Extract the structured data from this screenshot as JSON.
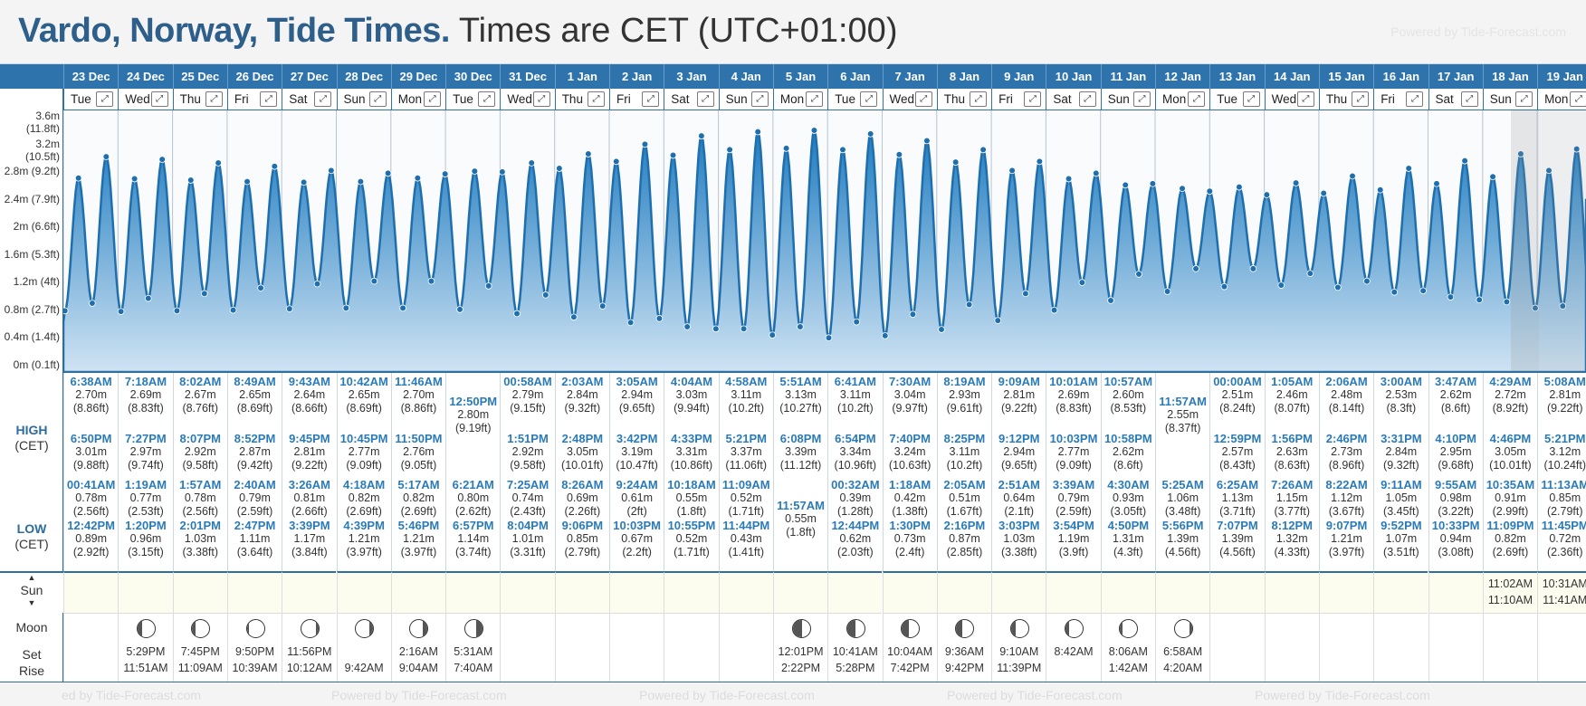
{
  "header": {
    "title_bold": "Vardo, Norway, Tide Times.",
    "title_rest": "Times are CET (UTC+01:00)",
    "powered": "Powered by Tide-Forecast.com"
  },
  "labels": {
    "high": "HIGH",
    "low": "LOW",
    "cet": "(CET)",
    "sun": "Sun",
    "moon": "Moon",
    "set": "Set",
    "rise": "Rise",
    "up_arrow": "▲",
    "down_arrow": "▼"
  },
  "y_axis": [
    "3.2m (10.5ft)",
    "2.8m (9.2ft)",
    "2.4m (7.9ft)",
    "2m (6.6ft)",
    "1.6m (5.3ft)",
    "1.2m (4ft)",
    "0.8m (2.7ft)",
    "0.4m (1.4ft)",
    "0m (0.1ft)"
  ],
  "y_axis_top_partial": "3.6m (11.8ft)",
  "bottom_text": [
    "ed by Tide-Forecast.com",
    "Powered by Tide-Forecast.com",
    "Powered by Tide-Forecast.com",
    "Powered by Tide-Forecast.com",
    "Powered by Tide-Forecast.com"
  ],
  "colors": {
    "accent": "#2f73ad",
    "time": "#2a7bb8",
    "chart_fill": "#2e86c6"
  },
  "days": [
    {
      "date": "23 Dec",
      "dow": "Tue",
      "h1": [
        "6:38AM",
        "2.70m",
        "(8.86ft)"
      ],
      "h2": [
        "6:50PM",
        "3.01m",
        "(9.88ft)"
      ],
      "l1": [
        "00:41AM",
        "0.78m",
        "(2.56ft)"
      ],
      "l2": [
        "12:42PM",
        "0.89m",
        "(2.92ft)"
      ],
      "sun": [],
      "moon": null,
      "mset": "",
      "mrise": ""
    },
    {
      "date": "24 Dec",
      "dow": "Wed",
      "h1": [
        "7:18AM",
        "2.69m",
        "(8.83ft)"
      ],
      "h2": [
        "7:27PM",
        "2.97m",
        "(9.74ft)"
      ],
      "l1": [
        "1:19AM",
        "0.77m",
        "(2.53ft)"
      ],
      "l2": [
        "1:20PM",
        "0.96m",
        "(3.15ft)"
      ],
      "sun": [],
      "moon": 0.35,
      "mset": "5:29PM",
      "mrise": "11:51AM"
    },
    {
      "date": "25 Dec",
      "dow": "Thu",
      "h1": [
        "8:02AM",
        "2.67m",
        "(8.76ft)"
      ],
      "h2": [
        "8:07PM",
        "2.92m",
        "(9.58ft)"
      ],
      "l1": [
        "1:57AM",
        "0.78m",
        "(2.56ft)"
      ],
      "l2": [
        "2:01PM",
        "1.03m",
        "(3.38ft)"
      ],
      "sun": [],
      "moon": 0.42,
      "mset": "7:45PM",
      "mrise": "11:09AM"
    },
    {
      "date": "26 Dec",
      "dow": "Fri",
      "h1": [
        "8:49AM",
        "2.65m",
        "(8.69ft)"
      ],
      "h2": [
        "8:52PM",
        "2.87m",
        "(9.42ft)"
      ],
      "l1": [
        "2:40AM",
        "0.79m",
        "(2.59ft)"
      ],
      "l2": [
        "2:47PM",
        "1.11m",
        "(3.64ft)"
      ],
      "sun": [],
      "moon": 0.48,
      "mset": "9:50PM",
      "mrise": "10:39AM"
    },
    {
      "date": "27 Dec",
      "dow": "Sat",
      "h1": [
        "9:43AM",
        "2.64m",
        "(8.66ft)"
      ],
      "h2": [
        "9:45PM",
        "2.81m",
        "(9.22ft)"
      ],
      "l1": [
        "3:26AM",
        "0.81m",
        "(2.66ft)"
      ],
      "l2": [
        "3:39PM",
        "1.17m",
        "(3.84ft)"
      ],
      "sun": [],
      "moon": 0.55,
      "mset": "11:56PM",
      "mrise": "10:12AM"
    },
    {
      "date": "28 Dec",
      "dow": "Sun",
      "h1": [
        "10:42AM",
        "2.65m",
        "(8.69ft)"
      ],
      "h2": [
        "10:45PM",
        "2.77m",
        "(9.09ft)"
      ],
      "l1": [
        "4:18AM",
        "0.82m",
        "(2.69ft)"
      ],
      "l2": [
        "4:39PM",
        "1.21m",
        "(3.97ft)"
      ],
      "sun": [],
      "moon": 0.62,
      "mset": "",
      "mrise": "9:42AM"
    },
    {
      "date": "29 Dec",
      "dow": "Mon",
      "h1": [
        "11:46AM",
        "2.70m",
        "(8.86ft)"
      ],
      "h2": [
        "11:50PM",
        "2.76m",
        "(9.05ft)"
      ],
      "l1": [
        "5:17AM",
        "0.82m",
        "(2.69ft)"
      ],
      "l2": [
        "5:46PM",
        "1.21m",
        "(3.97ft)"
      ],
      "sun": [],
      "moon": 0.7,
      "mset": "2:16AM",
      "mrise": "9:04AM"
    },
    {
      "date": "30 Dec",
      "dow": "Tue",
      "h1": null,
      "hmid": [
        "12:50PM",
        "2.80m",
        "(9.19ft)"
      ],
      "h2": null,
      "l1": [
        "6:21AM",
        "0.80m",
        "(2.62ft)"
      ],
      "l2": [
        "6:57PM",
        "1.14m",
        "(3.74ft)"
      ],
      "sun": [],
      "moon": 0.78,
      "mset": "5:31AM",
      "mrise": "7:40AM"
    },
    {
      "date": "31 Dec",
      "dow": "Wed",
      "h1": [
        "00:58AM",
        "2.79m",
        "(9.15ft)"
      ],
      "h2": [
        "1:51PM",
        "2.92m",
        "(9.58ft)"
      ],
      "l1": [
        "7:25AM",
        "0.74m",
        "(2.43ft)"
      ],
      "l2": [
        "8:04PM",
        "1.01m",
        "(3.31ft)"
      ],
      "sun": [],
      "moon": null,
      "mset": "",
      "mrise": ""
    },
    {
      "date": "1 Jan",
      "dow": "Thu",
      "h1": [
        "2:03AM",
        "2.84m",
        "(9.32ft)"
      ],
      "h2": [
        "2:48PM",
        "3.05m",
        "(10.01ft)"
      ],
      "l1": [
        "8:26AM",
        "0.69m",
        "(2.26ft)"
      ],
      "l2": [
        "9:06PM",
        "0.85m",
        "(2.79ft)"
      ],
      "sun": [],
      "moon": null,
      "mset": "",
      "mrise": ""
    },
    {
      "date": "2 Jan",
      "dow": "Fri",
      "h1": [
        "3:05AM",
        "2.94m",
        "(9.65ft)"
      ],
      "h2": [
        "3:42PM",
        "3.19m",
        "(10.47ft)"
      ],
      "l1": [
        "9:24AM",
        "0.61m",
        "(2ft)"
      ],
      "l2": [
        "10:03PM",
        "0.67m",
        "(2.2ft)"
      ],
      "sun": [],
      "moon": null,
      "mset": "",
      "mrise": ""
    },
    {
      "date": "3 Jan",
      "dow": "Sat",
      "h1": [
        "4:04AM",
        "3.03m",
        "(9.94ft)"
      ],
      "h2": [
        "4:33PM",
        "3.31m",
        "(10.86ft)"
      ],
      "l1": [
        "10:18AM",
        "0.55m",
        "(1.8ft)"
      ],
      "l2": [
        "10:55PM",
        "0.52m",
        "(1.71ft)"
      ],
      "sun": [],
      "moon": null,
      "mset": "",
      "mrise": ""
    },
    {
      "date": "4 Jan",
      "dow": "Sun",
      "h1": [
        "4:58AM",
        "3.11m",
        "(10.2ft)"
      ],
      "h2": [
        "5:21PM",
        "3.37m",
        "(11.06ft)"
      ],
      "l1": [
        "11:09AM",
        "0.52m",
        "(1.71ft)"
      ],
      "l2": [
        "11:44PM",
        "0.43m",
        "(1.41ft)"
      ],
      "sun": [],
      "moon": null,
      "mset": "",
      "mrise": ""
    },
    {
      "date": "5 Jan",
      "dow": "Mon",
      "h1": [
        "5:51AM",
        "3.13m",
        "(10.27ft)"
      ],
      "h2": [
        "6:08PM",
        "3.39m",
        "(11.12ft)"
      ],
      "l1": null,
      "lmid": [
        "11:57AM",
        "0.55m",
        "(1.8ft)"
      ],
      "l2": null,
      "sun": [],
      "moon": 0.05,
      "mset": "12:01PM",
      "mrise": "2:22PM"
    },
    {
      "date": "6 Jan",
      "dow": "Tue",
      "h1": [
        "6:41AM",
        "3.11m",
        "(10.2ft)"
      ],
      "h2": [
        "6:54PM",
        "3.34m",
        "(10.96ft)"
      ],
      "l1": [
        "00:32AM",
        "0.39m",
        "(1.28ft)"
      ],
      "l2": [
        "12:44PM",
        "0.62m",
        "(2.03ft)"
      ],
      "sun": [],
      "moon": 0.12,
      "mset": "10:41AM",
      "mrise": "5:28PM"
    },
    {
      "date": "7 Jan",
      "dow": "Wed",
      "h1": [
        "7:30AM",
        "3.04m",
        "(9.97ft)"
      ],
      "h2": [
        "7:40PM",
        "3.24m",
        "(10.63ft)"
      ],
      "l1": [
        "1:18AM",
        "0.42m",
        "(1.38ft)"
      ],
      "l2": [
        "1:30PM",
        "0.73m",
        "(2.4ft)"
      ],
      "sun": [],
      "moon": 0.18,
      "mset": "10:04AM",
      "mrise": "7:42PM"
    },
    {
      "date": "8 Jan",
      "dow": "Thu",
      "h1": [
        "8:19AM",
        "2.93m",
        "(9.61ft)"
      ],
      "h2": [
        "8:25PM",
        "3.11m",
        "(10.2ft)"
      ],
      "l1": [
        "2:05AM",
        "0.51m",
        "(1.67ft)"
      ],
      "l2": [
        "2:16PM",
        "0.87m",
        "(2.85ft)"
      ],
      "sun": [],
      "moon": 0.25,
      "mset": "9:36AM",
      "mrise": "9:42PM"
    },
    {
      "date": "9 Jan",
      "dow": "Fri",
      "h1": [
        "9:09AM",
        "2.81m",
        "(9.22ft)"
      ],
      "h2": [
        "9:12PM",
        "2.94m",
        "(9.65ft)"
      ],
      "l1": [
        "2:51AM",
        "0.64m",
        "(2.1ft)"
      ],
      "l2": [
        "3:03PM",
        "1.03m",
        "(3.38ft)"
      ],
      "sun": [],
      "moon": 0.32,
      "mset": "9:10AM",
      "mrise": "11:39PM"
    },
    {
      "date": "10 Jan",
      "dow": "Sat",
      "h1": [
        "10:01AM",
        "2.69m",
        "(8.83ft)"
      ],
      "h2": [
        "10:03PM",
        "2.77m",
        "(9.09ft)"
      ],
      "l1": [
        "3:39AM",
        "0.79m",
        "(2.59ft)"
      ],
      "l2": [
        "3:54PM",
        "1.19m",
        "(3.9ft)"
      ],
      "sun": [],
      "moon": 0.4,
      "mset": "8:42AM",
      "mrise": ""
    },
    {
      "date": "11 Jan",
      "dow": "Sun",
      "h1": [
        "10:57AM",
        "2.60m",
        "(8.53ft)"
      ],
      "h2": [
        "10:58PM",
        "2.62m",
        "(8.6ft)"
      ],
      "l1": [
        "4:30AM",
        "0.93m",
        "(3.05ft)"
      ],
      "l2": [
        "4:50PM",
        "1.31m",
        "(4.3ft)"
      ],
      "sun": [],
      "moon": 0.47,
      "mset": "8:06AM",
      "mrise": "1:42AM"
    },
    {
      "date": "12 Jan",
      "dow": "Mon",
      "h1": null,
      "hmid": [
        "11:57AM",
        "2.55m",
        "(8.37ft)"
      ],
      "h2": null,
      "l1": [
        "5:25AM",
        "1.06m",
        "(3.48ft)"
      ],
      "l2": [
        "5:56PM",
        "1.39m",
        "(4.56ft)"
      ],
      "sun": [],
      "moon": 0.55,
      "mset": "6:58AM",
      "mrise": "4:20AM"
    },
    {
      "date": "13 Jan",
      "dow": "Tue",
      "h1": [
        "00:00AM",
        "2.51m",
        "(8.24ft)"
      ],
      "h2": [
        "12:59PM",
        "2.57m",
        "(8.43ft)"
      ],
      "l1": [
        "6:25AM",
        "1.13m",
        "(3.71ft)"
      ],
      "l2": [
        "7:07PM",
        "1.39m",
        "(4.56ft)"
      ],
      "sun": [],
      "moon": null,
      "mset": "",
      "mrise": ""
    },
    {
      "date": "14 Jan",
      "dow": "Wed",
      "h1": [
        "1:05AM",
        "2.46m",
        "(8.07ft)"
      ],
      "h2": [
        "1:56PM",
        "2.63m",
        "(8.63ft)"
      ],
      "l1": [
        "7:26AM",
        "1.15m",
        "(3.77ft)"
      ],
      "l2": [
        "8:12PM",
        "1.32m",
        "(4.33ft)"
      ],
      "sun": [],
      "moon": null,
      "mset": "",
      "mrise": ""
    },
    {
      "date": "15 Jan",
      "dow": "Thu",
      "h1": [
        "2:06AM",
        "2.48m",
        "(8.14ft)"
      ],
      "h2": [
        "2:46PM",
        "2.73m",
        "(8.96ft)"
      ],
      "l1": [
        "8:22AM",
        "1.12m",
        "(3.67ft)"
      ],
      "l2": [
        "9:07PM",
        "1.21m",
        "(3.97ft)"
      ],
      "sun": [],
      "moon": null,
      "mset": "",
      "mrise": ""
    },
    {
      "date": "16 Jan",
      "dow": "Fri",
      "h1": [
        "3:00AM",
        "2.53m",
        "(8.3ft)"
      ],
      "h2": [
        "3:31PM",
        "2.84m",
        "(9.32ft)"
      ],
      "l1": [
        "9:11AM",
        "1.05m",
        "(3.45ft)"
      ],
      "l2": [
        "9:52PM",
        "1.07m",
        "(3.51ft)"
      ],
      "sun": [],
      "moon": null,
      "mset": "",
      "mrise": ""
    },
    {
      "date": "17 Jan",
      "dow": "Sat",
      "h1": [
        "3:47AM",
        "2.62m",
        "(8.6ft)"
      ],
      "h2": [
        "4:10PM",
        "2.95m",
        "(9.68ft)"
      ],
      "l1": [
        "9:55AM",
        "0.98m",
        "(3.22ft)"
      ],
      "l2": [
        "10:33PM",
        "0.94m",
        "(3.08ft)"
      ],
      "sun": [],
      "moon": null,
      "mset": "",
      "mrise": ""
    },
    {
      "date": "18 Jan",
      "dow": "Sun",
      "h1": [
        "4:29AM",
        "2.72m",
        "(8.92ft)"
      ],
      "h2": [
        "4:46PM",
        "3.05m",
        "(10.01ft)"
      ],
      "l1": [
        "10:35AM",
        "0.91m",
        "(2.99ft)"
      ],
      "l2": [
        "11:09PM",
        "0.82m",
        "(2.69ft)"
      ],
      "sun": [
        "11:02AM",
        "11:10AM"
      ],
      "moon": null,
      "mset": "",
      "mrise": ""
    },
    {
      "date": "19 Jan",
      "dow": "Mon",
      "h1": [
        "5:08AM",
        "2.81m",
        "(9.22ft)"
      ],
      "h2": [
        "5:21PM",
        "3.12m",
        "(10.24ft)"
      ],
      "l1": [
        "11:13AM",
        "0.85m",
        "(2.79ft)"
      ],
      "l2": [
        "11:45PM",
        "0.72m",
        "(2.36ft)"
      ],
      "sun": [
        "10:31AM",
        "11:41AM"
      ],
      "moon": null,
      "mset": "",
      "mrise": ""
    }
  ]
}
